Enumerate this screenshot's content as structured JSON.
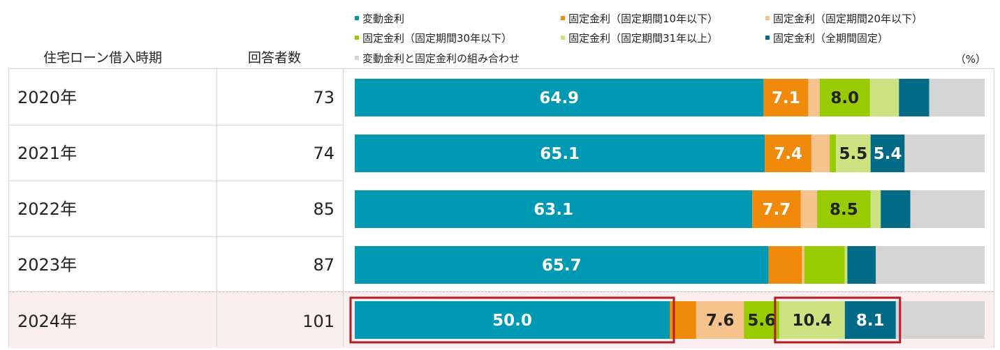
{
  "header": {
    "period_label": "住宅ローン借入時期",
    "respondents_label": "回答者数",
    "unit_label": "（%）"
  },
  "legend": [
    {
      "label": "変動金利",
      "color": "#0099b3"
    },
    {
      "label": "固定金利（固定期間10年以下）",
      "color": "#ef8a0a"
    },
    {
      "label": "固定金利（固定期間20年以下）",
      "color": "#f5c38b"
    },
    {
      "label": "固定金利（固定期間30年以下）",
      "color": "#99cc00"
    },
    {
      "label": "固定金利（固定期間31年以上）",
      "color": "#cde381"
    },
    {
      "label": "固定金利（全期間固定）",
      "color": "#006a87"
    },
    {
      "label": "変動金利と固定金利の組み合わせ",
      "color": "#d4d4d4"
    }
  ],
  "rows": [
    {
      "year": "2020年",
      "n": "73"
    },
    {
      "year": "2021年",
      "n": "74"
    },
    {
      "year": "2022年",
      "n": "85"
    },
    {
      "year": "2023年",
      "n": "87"
    },
    {
      "year": "2024年",
      "n": "101"
    }
  ],
  "chart_data": {
    "type": "bar",
    "orientation": "horizontal",
    "stacked": true,
    "percent": true,
    "categories": [
      "2020年",
      "2021年",
      "2022年",
      "2023年",
      "2024年"
    ],
    "xlim": [
      0,
      100
    ],
    "series": [
      {
        "name": "変動金利",
        "values": [
          64.9,
          65.1,
          63.1,
          65.7,
          50.0
        ],
        "labels": [
          "64.9",
          "65.1",
          "63.1",
          "65.7",
          "50.0"
        ]
      },
      {
        "name": "固定金利（固定期間10年以下）",
        "values": [
          7.1,
          7.4,
          7.7,
          5.3,
          4.2
        ],
        "labels": [
          "7.1",
          "7.4",
          "7.7",
          "",
          ""
        ]
      },
      {
        "name": "固定金利（固定期間20年以下）",
        "values": [
          1.8,
          2.9,
          2.6,
          0.4,
          7.6
        ],
        "labels": [
          "",
          "",
          "",
          "",
          "7.6"
        ]
      },
      {
        "name": "固定金利（固定期間30年以下）",
        "values": [
          8.0,
          1.0,
          8.5,
          6.4,
          5.6
        ],
        "labels": [
          "8.0",
          "",
          "8.5",
          "",
          "5.6"
        ]
      },
      {
        "name": "固定金利（固定期間31年以上）",
        "values": [
          4.6,
          5.5,
          1.6,
          0.4,
          10.4
        ],
        "labels": [
          "",
          "5.5",
          "",
          "",
          "10.4"
        ]
      },
      {
        "name": "固定金利（全期間固定）",
        "values": [
          4.8,
          5.4,
          4.7,
          4.5,
          8.1
        ],
        "labels": [
          "",
          "5.4",
          "",
          "",
          "8.1"
        ]
      },
      {
        "name": "変動金利と固定金利の組み合わせ",
        "values": [
          8.8,
          12.7,
          11.8,
          17.3,
          14.1
        ],
        "labels": [
          "",
          "",
          "",
          "",
          ""
        ]
      }
    ],
    "highlight_color": "#b01e23"
  }
}
